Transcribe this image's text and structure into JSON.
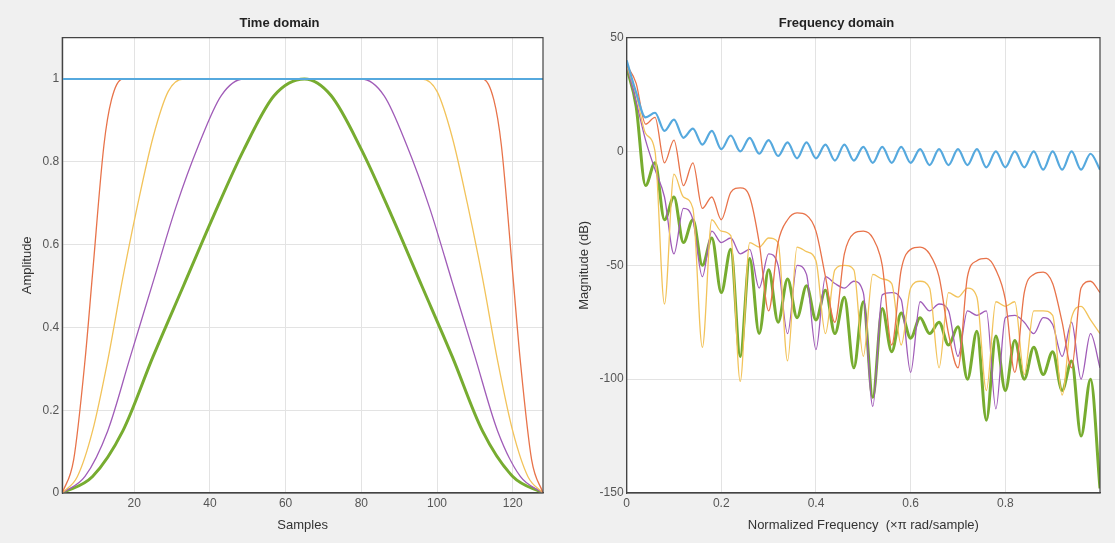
{
  "chart_data": [
    {
      "type": "line",
      "title": "Time domain",
      "xlabel": "Samples",
      "ylabel": "Amplitude",
      "xlim": [
        1,
        128
      ],
      "xticks": [
        20,
        40,
        60,
        80,
        100,
        120
      ],
      "ylim": [
        0,
        1.1
      ],
      "yticks": [
        0,
        0.2,
        0.4,
        0.6,
        0.8,
        1
      ],
      "grid": true,
      "series": [
        {
          "color": "#56a9de",
          "x": [
            1,
            128
          ],
          "values": [
            1,
            1
          ]
        },
        {
          "color": "#e8734a",
          "x": [
            1,
            4,
            7,
            9,
            12,
            14,
            17,
            112,
            115,
            117,
            120,
            122,
            125,
            128
          ],
          "values": [
            0,
            0.08,
            0.32,
            0.53,
            0.84,
            0.95,
            1,
            1,
            0.95,
            0.84,
            0.53,
            0.32,
            0.08,
            0
          ]
        },
        {
          "color": "#f2c35a",
          "x": [
            1,
            5,
            9,
            13,
            17,
            21,
            25,
            29,
            33,
            96,
            100,
            104,
            108,
            112,
            116,
            120,
            124,
            128
          ],
          "values": [
            0,
            0.04,
            0.15,
            0.32,
            0.52,
            0.7,
            0.86,
            0.97,
            1,
            1,
            0.97,
            0.86,
            0.7,
            0.52,
            0.32,
            0.15,
            0.04,
            0
          ]
        },
        {
          "color": "#a05cb8",
          "x": [
            1,
            7,
            13,
            19,
            25,
            31,
            37,
            43,
            49,
            80,
            86,
            92,
            98,
            104,
            110,
            116,
            122,
            128
          ],
          "values": [
            0,
            0.04,
            0.15,
            0.33,
            0.51,
            0.69,
            0.84,
            0.96,
            1,
            1,
            0.96,
            0.84,
            0.69,
            0.51,
            0.33,
            0.15,
            0.04,
            0
          ]
        },
        {
          "color": "#77ac30",
          "x": [
            1,
            9,
            17,
            25,
            33,
            41,
            49,
            57,
            65,
            72,
            80,
            88,
            96,
            104,
            112,
            120,
            128
          ],
          "values": [
            0,
            0.04,
            0.15,
            0.33,
            0.5,
            0.67,
            0.83,
            0.96,
            1,
            0.96,
            0.83,
            0.67,
            0.5,
            0.33,
            0.15,
            0.04,
            0
          ]
        }
      ]
    },
    {
      "type": "line",
      "title": "Frequency domain",
      "xlabel": "Normalized Frequency  (×π rad/sample)",
      "ylabel": "Magnitude (dB)",
      "xlim": [
        0,
        1
      ],
      "xticks": [
        0,
        0.2,
        0.4,
        0.6,
        0.8
      ],
      "ylim": [
        -150,
        50
      ],
      "yticks": [
        -150,
        -100,
        -50,
        0,
        50
      ],
      "grid": true,
      "x": [
        0,
        0.02,
        0.04,
        0.06,
        0.08,
        0.1,
        0.12,
        0.14,
        0.16,
        0.18,
        0.2,
        0.22,
        0.24,
        0.26,
        0.28,
        0.3,
        0.32,
        0.34,
        0.36,
        0.38,
        0.4,
        0.42,
        0.44,
        0.46,
        0.48,
        0.5,
        0.52,
        0.54,
        0.56,
        0.58,
        0.6,
        0.62,
        0.64,
        0.66,
        0.68,
        0.7,
        0.72,
        0.74,
        0.76,
        0.78,
        0.8,
        0.82,
        0.84,
        0.86,
        0.88,
        0.9,
        0.92,
        0.94,
        0.96,
        0.98,
        1
      ],
      "series": [
        {
          "color": "#56a9de",
          "values": [
            40,
            26,
            15,
            17,
            9,
            14,
            6,
            10,
            3,
            9,
            1,
            7,
            0,
            6,
            -1,
            5,
            -2,
            4,
            -3,
            4,
            -3,
            3,
            -4,
            3,
            -4,
            2,
            -5,
            2,
            -5,
            2,
            -5,
            1,
            -6,
            1,
            -6,
            1,
            -6,
            1,
            -7,
            0,
            -7,
            0,
            -7,
            0,
            -8,
            0,
            -8,
            0,
            -8,
            -1,
            -8
          ]
        },
        {
          "color": "#e8734a",
          "values": [
            38,
            30,
            12,
            15,
            -5,
            5,
            -15,
            -5,
            -25,
            -20,
            -30,
            -18,
            -16,
            -20,
            -40,
            -70,
            -40,
            -30,
            -27,
            -28,
            -35,
            -55,
            -75,
            -45,
            -36,
            -35,
            -38,
            -50,
            -85,
            -52,
            -43,
            -42,
            -45,
            -55,
            -80,
            -95,
            -55,
            -48,
            -47,
            -52,
            -65,
            -97,
            -62,
            -54,
            -53,
            -58,
            -75,
            -95,
            -60,
            -57,
            -62
          ]
        },
        {
          "color": "#f2c35a",
          "values": [
            38,
            25,
            8,
            0,
            -67,
            -10,
            -20,
            -25,
            -86,
            -30,
            -35,
            -37,
            -101,
            -40,
            -42,
            -38,
            -40,
            -92,
            -42,
            -44,
            -48,
            -80,
            -52,
            -50,
            -52,
            -90,
            -54,
            -56,
            -58,
            -85,
            -60,
            -57,
            -60,
            -95,
            -62,
            -64,
            -60,
            -64,
            -105,
            -66,
            -68,
            -66,
            -98,
            -70,
            -70,
            -72,
            -107,
            -73,
            -68,
            -74,
            -80
          ]
        },
        {
          "color": "#a05cb8",
          "values": [
            38,
            22,
            5,
            -8,
            -20,
            -45,
            -25,
            -30,
            -55,
            -35,
            -40,
            -38,
            -45,
            -43,
            -60,
            -45,
            -50,
            -80,
            -50,
            -54,
            -87,
            -55,
            -58,
            -60,
            -57,
            -62,
            -112,
            -63,
            -62,
            -65,
            -97,
            -66,
            -70,
            -67,
            -70,
            -90,
            -70,
            -72,
            -70,
            -113,
            -73,
            -72,
            -75,
            -80,
            -73,
            -76,
            -90,
            -75,
            -100,
            -80,
            -95
          ]
        },
        {
          "color": "#77ac30",
          "values": [
            37,
            20,
            -15,
            -5,
            -30,
            -20,
            -40,
            -30,
            -50,
            -38,
            -62,
            -43,
            -90,
            -47,
            -80,
            -52,
            -75,
            -56,
            -73,
            -59,
            -74,
            -61,
            -80,
            -64,
            -95,
            -66,
            -108,
            -69,
            -88,
            -71,
            -82,
            -73,
            -80,
            -75,
            -85,
            -77,
            -100,
            -79,
            -118,
            -81,
            -105,
            -83,
            -100,
            -86,
            -98,
            -88,
            -105,
            -92,
            -125,
            -100,
            -148
          ]
        }
      ]
    }
  ]
}
